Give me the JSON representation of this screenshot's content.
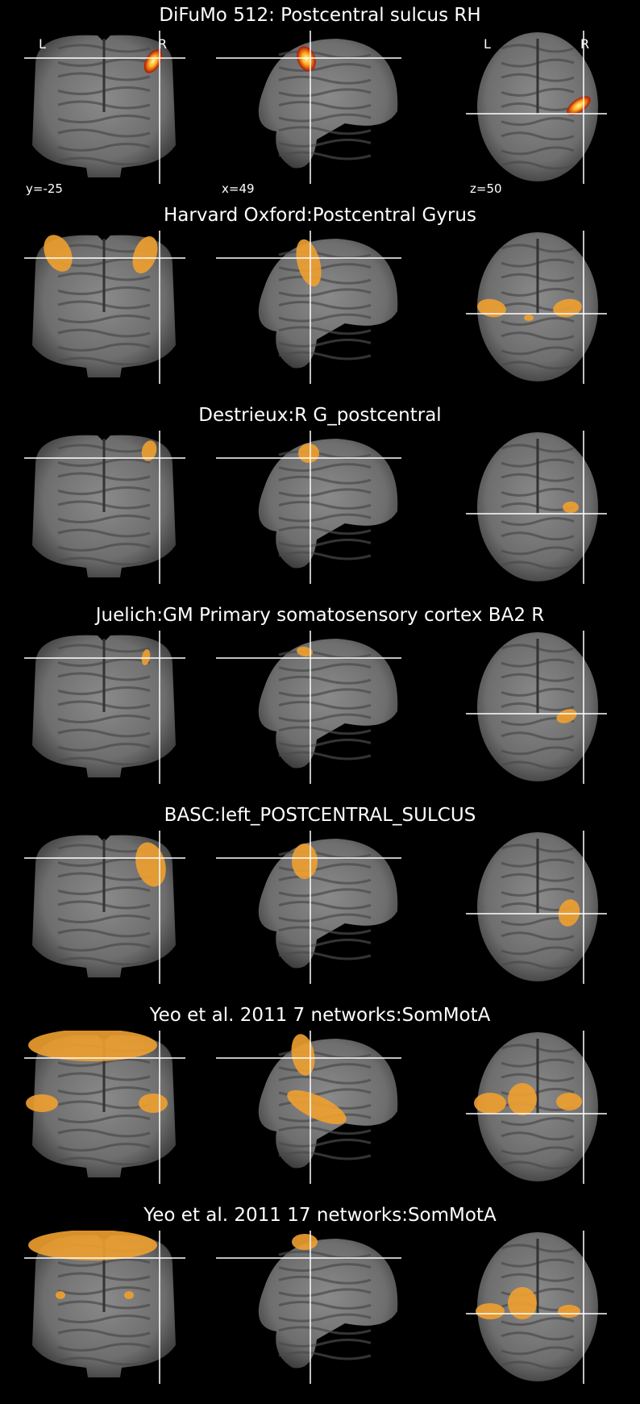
{
  "figure": {
    "cut_coords": {
      "coronal": "y=-25",
      "sagittal": "x=49",
      "axial": "z=50"
    },
    "orientation": {
      "left": "L",
      "right": "R"
    },
    "colors": {
      "background": "#000000",
      "overlay": "#f0a030",
      "heat_core": "#fff6b0",
      "heat_edge": "#b01000",
      "crosshair": "#ffffff"
    },
    "rows": [
      {
        "title": "DiFuMo 512: Postcentral sulcus RH",
        "map": "heat"
      },
      {
        "title": "Harvard Oxford:Postcentral Gyrus",
        "map": "overlay"
      },
      {
        "title": "Destrieux:R G_postcentral",
        "map": "overlay"
      },
      {
        "title": "Juelich:GM Primary somatosensory cortex BA2 R",
        "map": "overlay"
      },
      {
        "title": "BASC:left_POSTCENTRAL_SULCUS",
        "map": "overlay"
      },
      {
        "title": "Yeo et al. 2011 7 networks:SomMotA",
        "map": "overlay"
      },
      {
        "title": "Yeo et al. 2011 17 networks:SomMotA",
        "map": "overlay"
      }
    ]
  }
}
